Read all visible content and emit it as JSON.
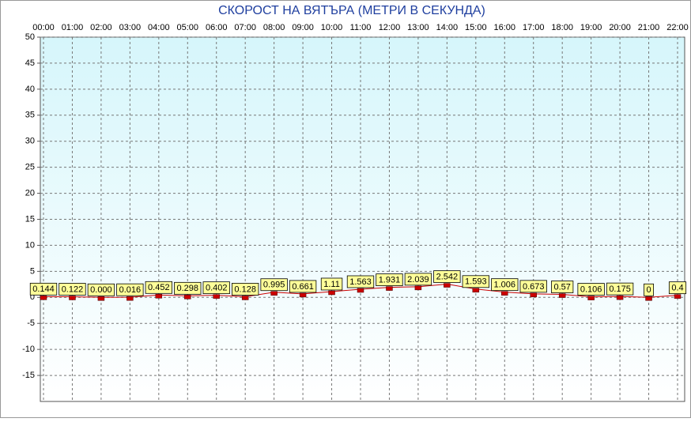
{
  "chart_data": {
    "type": "line",
    "title": "СКОРОСТ НА ВЯТЪРА (МЕТРИ В СЕКУНДА)",
    "categories": [
      "00:00",
      "01:00",
      "02:00",
      "03:00",
      "04:00",
      "05:00",
      "06:00",
      "07:00",
      "08:00",
      "09:00",
      "10:00",
      "11:00",
      "12:00",
      "13:00",
      "14:00",
      "15:00",
      "16:00",
      "17:00",
      "18:00",
      "19:00",
      "20:00",
      "21:00",
      "22:00"
    ],
    "values": [
      0.144,
      0.122,
      0,
      0.016,
      0.452,
      0.298,
      0.402,
      0.128,
      0.995,
      0.661,
      1.11,
      1.563,
      1.931,
      2.039,
      2.542,
      1.593,
      1.006,
      0.673,
      0.57,
      0.106,
      0.175,
      0,
      0.4
    ],
    "value_labels": [
      "0.144",
      "0.122",
      "0.000",
      "0.016",
      "0.452",
      "0.298",
      "0.402",
      "0.128",
      "0.995",
      "0.661",
      "1.11",
      "1.563",
      "1.931",
      "2.039",
      "2.542",
      "1.593",
      "1.006",
      "0.673",
      "0.57",
      "0.106",
      "0.175",
      "0",
      "0.4"
    ],
    "color": "#cc0000",
    "ylim": [
      -20,
      50
    ],
    "yticks": [
      50,
      45,
      40,
      35,
      30,
      25,
      20,
      15,
      10,
      5,
      0,
      -5,
      -10,
      -15
    ],
    "grid": true
  }
}
